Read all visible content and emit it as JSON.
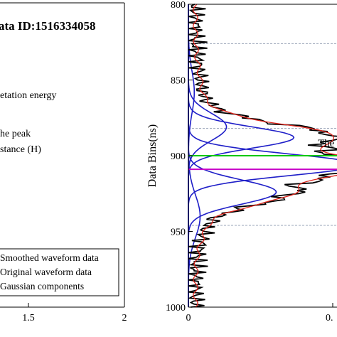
{
  "left_panel": {
    "title": "ata ID:1516334058",
    "labels": [
      "etation energy",
      "he peak",
      "stance (H)"
    ],
    "legend": [
      "Smoothed waveform data",
      "Original waveform data",
      "Gaussian components"
    ],
    "xticks": [
      "1.5",
      "2"
    ]
  },
  "right_panel": {
    "ylabel": "Data Bins(ns)",
    "yticks": [
      "800",
      "850",
      "900",
      "950",
      "1000"
    ],
    "xticks": [
      "0",
      "0."
    ],
    "annotation": "The"
  },
  "colors": {
    "original": "#000000",
    "smoothed": "#e0241b",
    "gaussian": "#1f1fc8",
    "green_line": "#00c800",
    "magenta_line": "#c800c8",
    "dashed": "#9aa4b8"
  },
  "chart_data": {
    "type": "line",
    "ylabel": "Data Bins(ns)",
    "ylim": [
      1000,
      800
    ],
    "xlim": [
      0,
      0.5
    ],
    "dashed_lines_y": [
      826,
      882,
      946
    ],
    "green_line_y": 900,
    "magenta_line_y": 909,
    "gaussian_components": [
      {
        "center": 858,
        "amplitude": 0.01,
        "sigma": 14
      },
      {
        "center": 881,
        "amplitude": 0.065,
        "sigma": 9
      },
      {
        "center": 888,
        "amplitude": 0.18,
        "sigma": 7
      },
      {
        "center": 906,
        "amplitude": 0.29,
        "sigma": 7
      },
      {
        "center": 924,
        "amplitude": 0.15,
        "sigma": 8
      },
      {
        "center": 940,
        "amplitude": 0.02,
        "sigma": 14
      }
    ]
  }
}
